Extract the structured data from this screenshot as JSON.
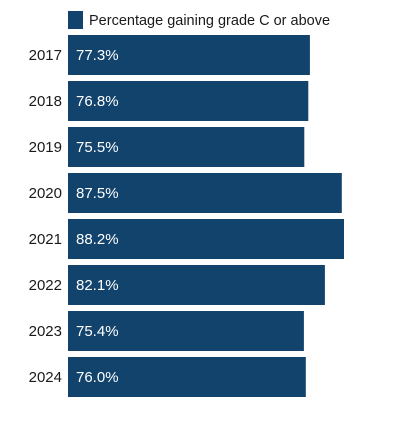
{
  "chart_data": {
    "type": "bar",
    "orientation": "horizontal",
    "categories": [
      "2017",
      "2018",
      "2019",
      "2020",
      "2021",
      "2022",
      "2023",
      "2024"
    ],
    "series": [
      {
        "name": "Percentage gaining grade C or above",
        "values": [
          77.3,
          76.8,
          75.5,
          87.5,
          88.2,
          82.1,
          75.4,
          76.0
        ],
        "value_labels": [
          "77.3%",
          "76.8%",
          "75.5%",
          "87.5%",
          "88.2%",
          "82.1%",
          "75.4%",
          "76.0%"
        ],
        "color": "#12436d"
      }
    ],
    "title": "",
    "xlabel": "",
    "ylabel": "",
    "xlim": [
      0,
      100
    ],
    "grid": false,
    "legend": "top-left",
    "data_labels": "inside-start"
  }
}
